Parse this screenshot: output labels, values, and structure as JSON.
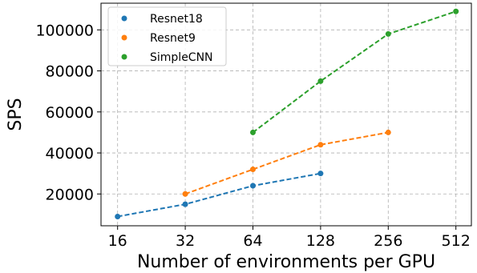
{
  "chart_data": {
    "type": "line",
    "xlabel": "Number of environments per GPU",
    "ylabel": "SPS",
    "xscale": "log2",
    "x_ticks": [
      16,
      32,
      64,
      128,
      256,
      512
    ],
    "y_ticks": [
      20000,
      40000,
      60000,
      80000,
      100000
    ],
    "xlim": [
      13.5,
      600
    ],
    "ylim": [
      4500,
      113000
    ],
    "grid": true,
    "legend_position": "top-left",
    "line_style": "dashed",
    "series": [
      {
        "name": "Resnet18",
        "color": "#1f77b4",
        "x": [
          16,
          32,
          64,
          128
        ],
        "y": [
          9000,
          15000,
          24000,
          30000
        ]
      },
      {
        "name": "Resnet9",
        "color": "#ff7f0e",
        "x": [
          32,
          64,
          128,
          256
        ],
        "y": [
          20000,
          32000,
          44000,
          50000
        ]
      },
      {
        "name": "SimpleCNN",
        "color": "#2ca02c",
        "x": [
          64,
          128,
          256,
          512
        ],
        "y": [
          50000,
          75000,
          98000,
          109000
        ]
      }
    ]
  }
}
